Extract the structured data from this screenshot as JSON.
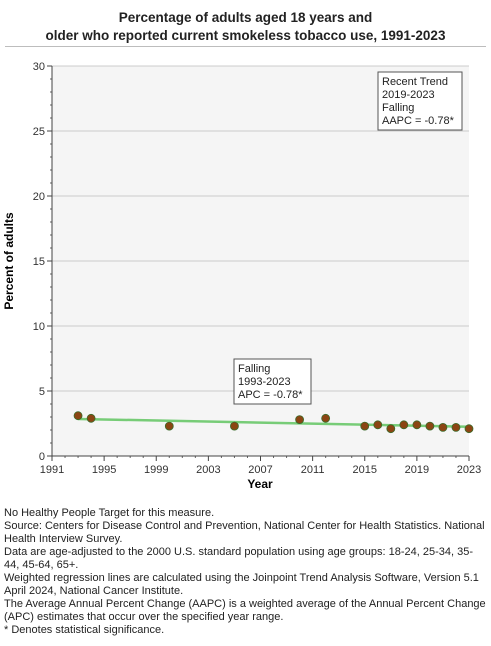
{
  "title_line1": "Percentage of adults aged 18 years and",
  "title_line2": "older who reported current smokeless tobacco use, 1991-2023",
  "chart_data": {
    "type": "scatter",
    "xlabel": "Year",
    "ylabel": "Percent of adults",
    "xlim": [
      1991,
      2023
    ],
    "ylim": [
      0,
      30
    ],
    "x_ticks": [
      1991,
      1995,
      1999,
      2003,
      2007,
      2011,
      2015,
      2019,
      2023
    ],
    "y_ticks": [
      0,
      5,
      10,
      15,
      20,
      25,
      30
    ],
    "grid": "horizontal",
    "points": [
      {
        "x": 1993,
        "y": 3.1
      },
      {
        "x": 1994,
        "y": 2.9
      },
      {
        "x": 2000,
        "y": 2.3
      },
      {
        "x": 2005,
        "y": 2.3
      },
      {
        "x": 2010,
        "y": 2.8
      },
      {
        "x": 2012,
        "y": 2.9
      },
      {
        "x": 2015,
        "y": 2.3
      },
      {
        "x": 2016,
        "y": 2.4
      },
      {
        "x": 2017,
        "y": 2.1
      },
      {
        "x": 2018,
        "y": 2.4
      },
      {
        "x": 2019,
        "y": 2.4
      },
      {
        "x": 2020,
        "y": 2.3
      },
      {
        "x": 2021,
        "y": 2.2
      },
      {
        "x": 2022,
        "y": 2.2
      },
      {
        "x": 2023,
        "y": 2.1
      }
    ],
    "trend_line": {
      "x": [
        1993,
        2023
      ],
      "y": [
        2.85,
        2.25
      ]
    },
    "annotations": [
      {
        "lines": [
          "Falling",
          "1993-2023",
          "APC = -0.78*"
        ]
      },
      {
        "lines": [
          "Recent Trend",
          "2019-2023",
          "Falling",
          "AAPC = -0.78*"
        ]
      }
    ],
    "colors": {
      "point": "#8b4513",
      "point_stroke": "#3a6b2a",
      "trend": "#77cc77",
      "plot_bg": "#f5f5f5",
      "grid": "#cccccc"
    }
  },
  "notes": [
    "No Healthy People Target for this measure.",
    "Source: Centers for Disease Control and Prevention, National Center for Health Statistics. National Health Interview Survey.",
    "Data are age-adjusted to the 2000 U.S. standard population using age groups: 18-24, 25-34, 35-44, 45-64, 65+.",
    "Weighted regression lines are calculated using the Joinpoint Trend Analysis Software, Version 5.1 April 2024, National Cancer Institute.",
    "The Average Annual Percent Change (AAPC) is a weighted average of the Annual Percent Change (APC) estimates that occur over the specified year range.",
    "* Denotes statistical significance."
  ]
}
